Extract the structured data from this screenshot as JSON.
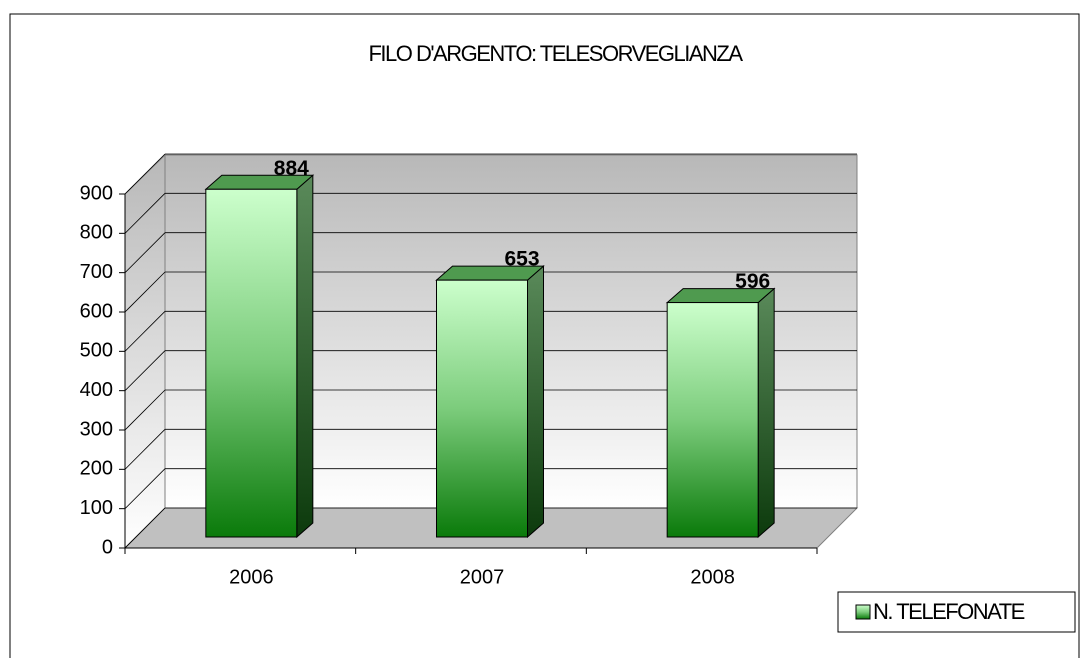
{
  "chart_data": {
    "type": "bar",
    "title": "FILO D'ARGENTO: TELESORVEGLIANZA",
    "categories": [
      "2006",
      "2007",
      "2008"
    ],
    "series": [
      {
        "name": "N. TELEFONATE",
        "color": "#1a8a1a",
        "values": [
          884,
          653,
          596
        ]
      }
    ],
    "ylim": [
      0,
      900
    ],
    "yticks": [
      0,
      100,
      200,
      300,
      400,
      500,
      600,
      700,
      800,
      900
    ],
    "grid": true,
    "legend": "bottom-right"
  }
}
